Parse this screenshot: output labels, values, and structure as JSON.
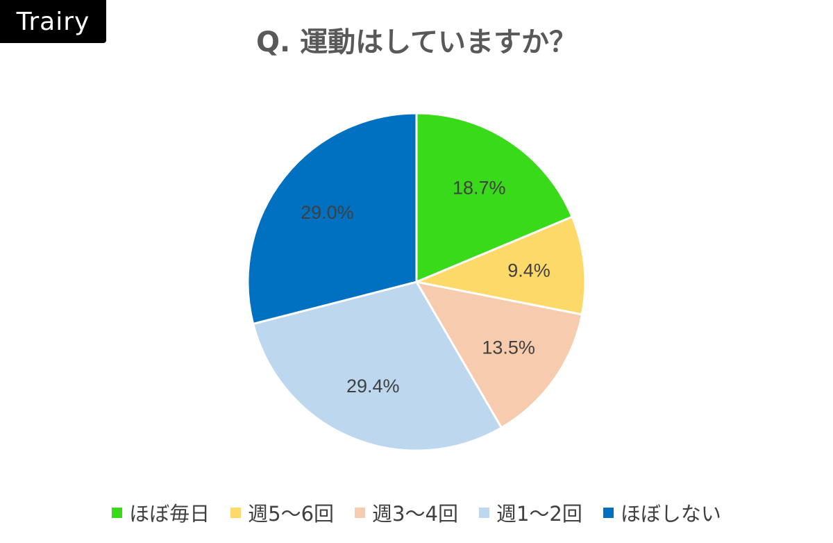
{
  "brand": {
    "name": "Trairy"
  },
  "chart_data": {
    "type": "pie",
    "title": "Q. 運動はしていますか？",
    "start": "12 o'clock",
    "direction": "clockwise",
    "legend_position": "bottom",
    "slices": [
      {
        "label": "ほぼ毎日",
        "value": 18.7,
        "display": "18.7%",
        "color": "#38DA1A"
      },
      {
        "label": "週5〜6回",
        "value": 9.4,
        "display": "9.4%",
        "color": "#FDD96A"
      },
      {
        "label": "週3〜4回",
        "value": 13.5,
        "display": "13.5%",
        "color": "#F7CBAE"
      },
      {
        "label": "週1〜2回",
        "value": 29.4,
        "display": "29.4%",
        "color": "#BDD7EE"
      },
      {
        "label": "ほぼしない",
        "value": 29.0,
        "display": "29.0%",
        "color": "#0070C0"
      }
    ]
  }
}
